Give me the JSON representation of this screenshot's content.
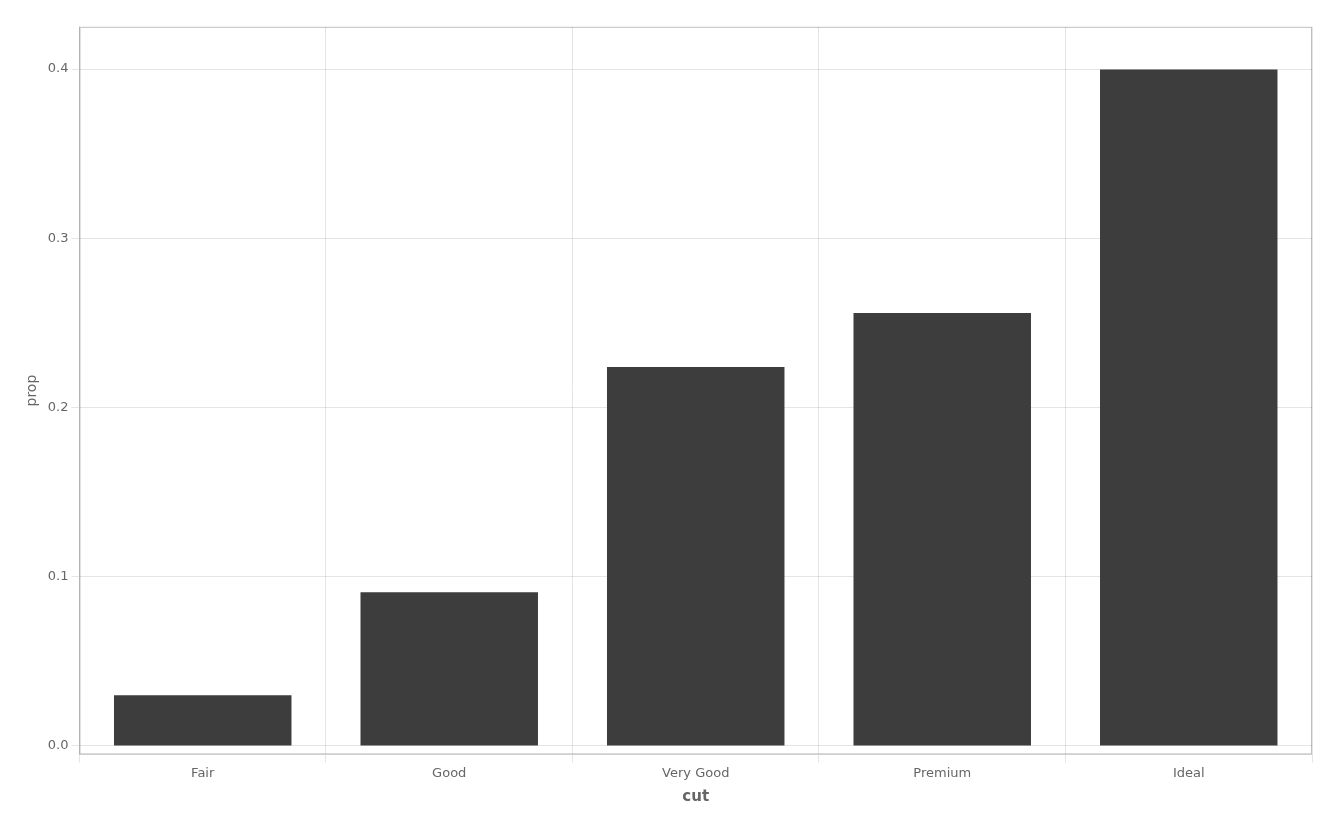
{
  "chart_data": {
    "type": "bar",
    "categories": [
      "Fair",
      "Good",
      "Very Good",
      "Premium",
      "Ideal"
    ],
    "values": [
      0.03,
      0.0909,
      0.224,
      0.2558,
      0.3997
    ],
    "color": "#3d3d3d",
    "xlabel": "cut",
    "ylabel": "prop",
    "ylim": [
      -0.005,
      0.425
    ],
    "yticks": [
      {
        "value": 0.0,
        "label": "0.0"
      },
      0.1,
      0.2,
      0.3,
      0.4
    ],
    "grid": true
  }
}
